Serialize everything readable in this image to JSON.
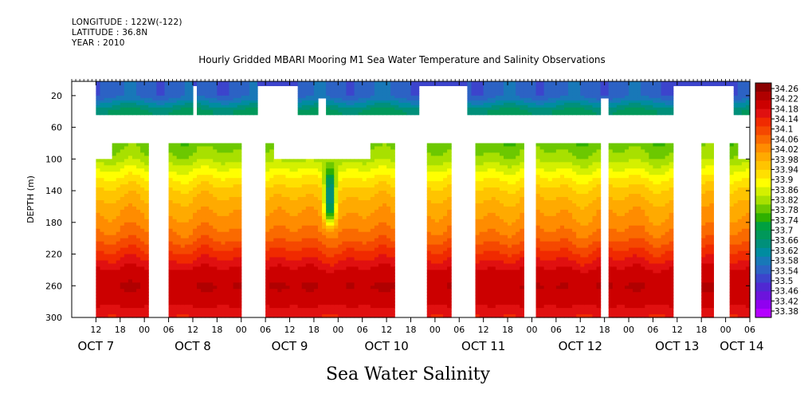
{
  "header": {
    "longitude": "LONGITUDE : 122W(-122)",
    "latitude": "LATITUDE : 36.8N",
    "year": "YEAR : 2010"
  },
  "chart_data": {
    "type": "heatmap",
    "title": "Hourly Gridded MBARI Mooring M1 Sea Water Temperature and Salinity Observations",
    "variable_label": "Sea Water Salinity",
    "ylabel": "DEPTH (m)",
    "ylim": [
      300,
      0
    ],
    "y_reversed": true,
    "y_ticks": [
      20,
      60,
      100,
      140,
      180,
      220,
      260,
      300
    ],
    "x_units": "hours since 2010-10-07 00:00",
    "xlim": [
      6,
      174
    ],
    "x_hour_ticks": [
      {
        "x": 12,
        "label": "12"
      },
      {
        "x": 18,
        "label": "18"
      },
      {
        "x": 24,
        "label": "00"
      },
      {
        "x": 30,
        "label": "06"
      },
      {
        "x": 36,
        "label": "12"
      },
      {
        "x": 42,
        "label": "18"
      },
      {
        "x": 48,
        "label": "00"
      },
      {
        "x": 54,
        "label": "06"
      },
      {
        "x": 60,
        "label": "12"
      },
      {
        "x": 66,
        "label": "18"
      },
      {
        "x": 72,
        "label": "00"
      },
      {
        "x": 78,
        "label": "06"
      },
      {
        "x": 84,
        "label": "12"
      },
      {
        "x": 90,
        "label": "18"
      },
      {
        "x": 96,
        "label": "00"
      },
      {
        "x": 102,
        "label": "06"
      },
      {
        "x": 108,
        "label": "12"
      },
      {
        "x": 114,
        "label": "18"
      },
      {
        "x": 120,
        "label": "00"
      },
      {
        "x": 126,
        "label": "06"
      },
      {
        "x": 132,
        "label": "12"
      },
      {
        "x": 138,
        "label": "18"
      },
      {
        "x": 144,
        "label": "00"
      },
      {
        "x": 150,
        "label": "06"
      },
      {
        "x": 156,
        "label": "12"
      },
      {
        "x": 162,
        "label": "18"
      },
      {
        "x": 168,
        "label": "00"
      },
      {
        "x": 174,
        "label": "06"
      }
    ],
    "x_day_labels": [
      {
        "x": 12,
        "label": "OCT  7"
      },
      {
        "x": 36,
        "label": "OCT  8"
      },
      {
        "x": 60,
        "label": "OCT  9"
      },
      {
        "x": 84,
        "label": "OCT 10"
      },
      {
        "x": 108,
        "label": "OCT 11"
      },
      {
        "x": 132,
        "label": "OCT 12"
      },
      {
        "x": 156,
        "label": "OCT 13"
      },
      {
        "x": 172,
        "label": "OCT 14"
      }
    ],
    "colorbar": {
      "labels": [
        "34.26",
        "34.22",
        "34.18",
        "34.14",
        "34.1",
        "34.06",
        "34.02",
        "33.98",
        "33.94",
        "33.9",
        "33.86",
        "33.82",
        "33.78",
        "33.74",
        "33.7",
        "33.66",
        "33.62",
        "33.58",
        "33.54",
        "33.5",
        "33.46",
        "33.42",
        "33.38"
      ],
      "colors": [
        "#8a0000",
        "#b00000",
        "#cc0000",
        "#e01010",
        "#f02a00",
        "#f54800",
        "#fa6a00",
        "#ff8c00",
        "#ffaa00",
        "#ffc400",
        "#ffe000",
        "#ffff00",
        "#d4f000",
        "#a8e000",
        "#6cc800",
        "#2eb000",
        "#00a040",
        "#00985a",
        "#00907a",
        "#008ca0",
        "#1878b8",
        "#2c62c4",
        "#3c44cc",
        "#5028d2",
        "#6c14dc",
        "#9000f0",
        "#b400ff"
      ],
      "range": [
        33.38,
        34.26
      ]
    },
    "series": [
      {
        "name": "surface",
        "depths": [
          20,
          40
        ],
        "values": [
          33.55,
          33.68
        ]
      },
      {
        "name": "deep",
        "depths": [
          80,
          100,
          120,
          140,
          160,
          180,
          200,
          220,
          240,
          260,
          280,
          300
        ],
        "values": [
          33.78,
          33.82,
          33.89,
          33.95,
          33.99,
          34.02,
          34.06,
          34.12,
          34.18,
          34.21,
          34.19,
          34.14
        ]
      }
    ],
    "deep_gaps": [
      [
        25,
        30
      ],
      [
        48,
        54
      ],
      [
        86,
        91
      ],
      [
        91.5,
        94.5
      ],
      [
        137,
        139
      ],
      [
        155,
        162
      ],
      [
        165,
        169
      ]
    ],
    "deep_top_gaps": [
      [
        5.5,
        12
      ],
      [
        100,
        106
      ],
      [
        118,
        121
      ]
    ],
    "deep_shallow_100m": [
      [
        11.5,
        16
      ],
      [
        56,
        80
      ],
      [
        171,
        174
      ]
    ],
    "surface_gaps": [
      [
        36,
        37
      ],
      [
        52,
        62
      ],
      [
        92,
        104
      ],
      [
        155,
        170
      ]
    ],
    "surface_gap_lower_only": [
      [
        67,
        69
      ],
      [
        137,
        139
      ],
      [
        164,
        166
      ]
    ],
    "low_salinity_intrusion": {
      "x": 70,
      "depth_top": 100,
      "depth_bottom": 190,
      "min_value": 33.55
    }
  }
}
